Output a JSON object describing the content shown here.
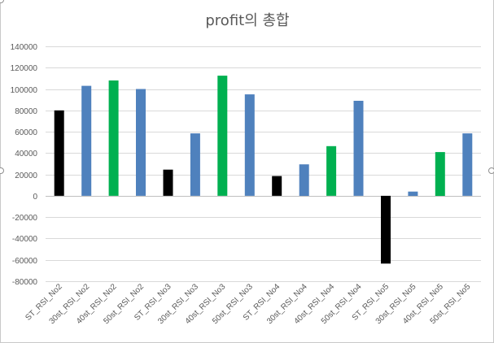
{
  "chart_data": {
    "type": "bar",
    "title": "profit의 총합",
    "xlabel": "",
    "ylabel": "",
    "ylim": [
      -80000,
      140000
    ],
    "y_ticks": [
      140000,
      120000,
      100000,
      80000,
      60000,
      40000,
      20000,
      0,
      -20000,
      -40000,
      -60000,
      -80000
    ],
    "grid": true,
    "legend": "none",
    "categories": [
      "ST_RSI_No2",
      "30st_RSI_No2",
      "40st_RSI_No2",
      "50st_RSI_No2",
      "ST_RSI_No3",
      "30st_RSI_No3",
      "40st_RSI_No3",
      "50st_RSI_No3",
      "ST_RSI_No4",
      "30st_RSI_No4",
      "40st_RSI_No4",
      "50st_RSI_No4",
      "ST_RSI_No5",
      "30st_RSI_No5",
      "40st_RSI_No5",
      "50st_RSI_No5"
    ],
    "values": [
      80000,
      103000,
      108000,
      100000,
      24500,
      58500,
      112500,
      95000,
      18500,
      29500,
      46500,
      89000,
      -63500,
      4000,
      41000,
      58500
    ],
    "bar_colors": [
      "#000000",
      "#4f81bd",
      "#00b050",
      "#4f81bd",
      "#000000",
      "#4f81bd",
      "#00b050",
      "#4f81bd",
      "#000000",
      "#4f81bd",
      "#00b050",
      "#4f81bd",
      "#000000",
      "#4f81bd",
      "#00b050",
      "#4f81bd"
    ],
    "gridline_color": "#d9d9d9",
    "text_color": "#595959"
  }
}
